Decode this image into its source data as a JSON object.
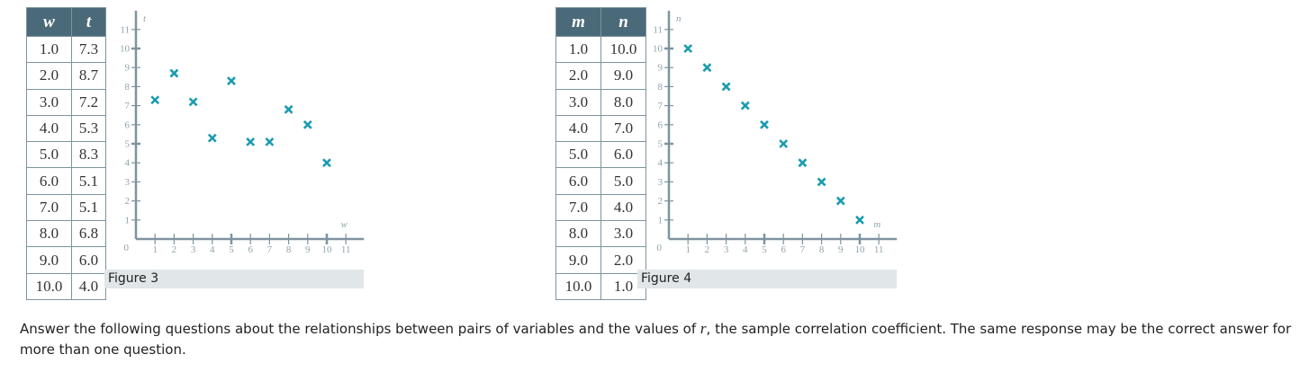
{
  "figure3": {
    "table": {
      "headers": [
        "w",
        "t"
      ],
      "rows": [
        [
          "1.0",
          "7.3"
        ],
        [
          "2.0",
          "8.7"
        ],
        [
          "3.0",
          "7.2"
        ],
        [
          "4.0",
          "5.3"
        ],
        [
          "5.0",
          "8.3"
        ],
        [
          "6.0",
          "5.1"
        ],
        [
          "7.0",
          "5.1"
        ],
        [
          "8.0",
          "6.8"
        ],
        [
          "9.0",
          "6.0"
        ],
        [
          "10.0",
          "4.0"
        ]
      ]
    },
    "caption": "Figure 3"
  },
  "figure4": {
    "table": {
      "headers": [
        "m",
        "n"
      ],
      "rows": [
        [
          "1.0",
          "10.0"
        ],
        [
          "2.0",
          "9.0"
        ],
        [
          "3.0",
          "8.0"
        ],
        [
          "4.0",
          "7.0"
        ],
        [
          "5.0",
          "6.0"
        ],
        [
          "6.0",
          "5.0"
        ],
        [
          "7.0",
          "4.0"
        ],
        [
          "8.0",
          "3.0"
        ],
        [
          "9.0",
          "2.0"
        ],
        [
          "10.0",
          "1.0"
        ]
      ]
    },
    "caption": "Figure 4"
  },
  "instructions": {
    "part1": "Answer the following questions about the relationships between pairs of variables and the values of ",
    "var": "r",
    "part2": ", the sample correlation coefficient. The same response may be the correct answer for more than one question."
  },
  "colors": {
    "marker": "#1a9bb0",
    "axis": "#7d949f",
    "table_header": "#4a6a7a",
    "caption_bg": "#e1e6e8"
  },
  "chart_data": [
    {
      "type": "scatter",
      "title": "Figure 3",
      "xlabel": "w",
      "ylabel": "t",
      "x": [
        1,
        2,
        3,
        4,
        5,
        6,
        7,
        8,
        9,
        10
      ],
      "y": [
        7.3,
        8.7,
        7.2,
        5.3,
        8.3,
        5.1,
        5.1,
        6.8,
        6.0,
        4.0
      ],
      "xlim": [
        0,
        11
      ],
      "ylim": [
        0,
        11
      ],
      "xticks": [
        "1",
        "2",
        "3",
        "4",
        "5",
        "6",
        "7",
        "8",
        "9",
        "10",
        "11"
      ],
      "yticks": [
        "1",
        "2",
        "3",
        "4",
        "5",
        "6",
        "7",
        "8",
        "9",
        "10",
        "11"
      ],
      "origin_label": "0",
      "marker": "x",
      "grid": false
    },
    {
      "type": "scatter",
      "title": "Figure 4",
      "xlabel": "m",
      "ylabel": "n",
      "x": [
        1,
        2,
        3,
        4,
        5,
        6,
        7,
        8,
        9,
        10
      ],
      "y": [
        10,
        9,
        8,
        7,
        6,
        5,
        4,
        3,
        2,
        1
      ],
      "xlim": [
        0,
        11
      ],
      "ylim": [
        0,
        11
      ],
      "xticks": [
        "1",
        "2",
        "3",
        "4",
        "5",
        "6",
        "7",
        "8",
        "9",
        "10",
        "11"
      ],
      "yticks": [
        "1",
        "2",
        "3",
        "4",
        "5",
        "6",
        "7",
        "8",
        "9",
        "10",
        "11"
      ],
      "origin_label": "0",
      "marker": "x",
      "grid": false
    }
  ]
}
